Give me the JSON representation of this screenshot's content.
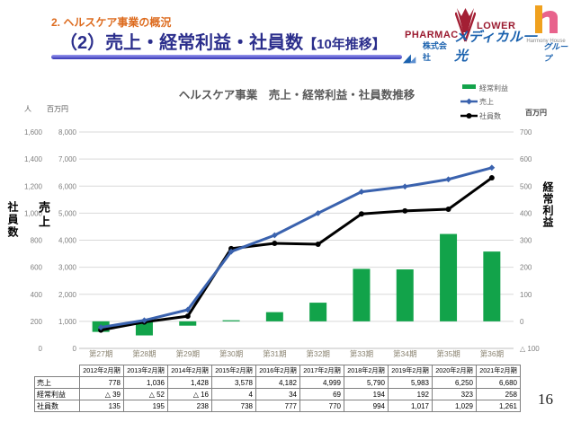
{
  "header": {
    "section": "2. ヘルスケア事業の概況",
    "title_main": "（2）売上・経常利益・社員数",
    "title_sub": "【10年推移】"
  },
  "logos": {
    "pharmacy": {
      "left": "PHARMAC",
      "right": "LOWER"
    },
    "harmony": {
      "caption": "Harmony House"
    },
    "medical": {
      "prefix": "株式会社",
      "name": "メディカル一光",
      "suffix": "グループ"
    }
  },
  "chart_data": {
    "type": "combo",
    "title": "ヘルスケア事業　売上・経常利益・社員数推移",
    "categories": [
      "第27期",
      "第28期",
      "第29期",
      "第30期",
      "第31期",
      "第32期",
      "第33期",
      "第34期",
      "第35期",
      "第36期"
    ],
    "series": [
      {
        "name": "経常利益",
        "type": "bar",
        "axis": "right",
        "color": "#12A34A",
        "values": [
          -39,
          -52,
          -16,
          4,
          34,
          69,
          194,
          192,
          323,
          258
        ]
      },
      {
        "name": "売上",
        "type": "line",
        "axis": "left_sales",
        "color": "#3A62AE",
        "values": [
          778,
          1036,
          1428,
          3578,
          4182,
          4999,
          5790,
          5983,
          6250,
          6680
        ]
      },
      {
        "name": "社員数",
        "type": "line",
        "axis": "left_employees",
        "color": "#000000",
        "values": [
          135,
          195,
          238,
          738,
          777,
          770,
          994,
          1017,
          1029,
          1261
        ]
      }
    ],
    "axes": {
      "left_employees": {
        "unit": "人",
        "title": "社員数",
        "min": 0,
        "max": 1600,
        "ticks": [
          "1,600",
          "1,400",
          "1,200",
          "1,000",
          "800",
          "600",
          "400",
          "200",
          "0"
        ]
      },
      "left_sales": {
        "unit": "百万円",
        "title": "売上",
        "min": 0,
        "max": 8000,
        "ticks": [
          "8,000",
          "7,000",
          "6,000",
          "5,000",
          "4,000",
          "3,000",
          "2,000",
          "1,000",
          "0"
        ]
      },
      "right": {
        "unit": "百万円",
        "title": "経常利益",
        "min": -100,
        "max": 700,
        "ticks": [
          "700",
          "600",
          "500",
          "400",
          "300",
          "200",
          "100",
          "0",
          "△ 100"
        ]
      }
    },
    "legend": [
      "経常利益",
      "売上",
      "社員数"
    ],
    "grid": true,
    "legend_position": "top-right"
  },
  "table": {
    "headers": [
      "2012年2月期",
      "2013年2月期",
      "2014年2月期",
      "2015年2月期",
      "2016年2月期",
      "2017年2月期",
      "2018年2月期",
      "2019年2月期",
      "2020年2月期",
      "2021年2月期"
    ],
    "rows": [
      {
        "label": "売上",
        "values": [
          "778",
          "1,036",
          "1,428",
          "3,578",
          "4,182",
          "4,999",
          "5,790",
          "5,983",
          "6,250",
          "6,680"
        ]
      },
      {
        "label": "経常利益",
        "values": [
          "△ 39",
          "△ 52",
          "△ 16",
          "4",
          "34",
          "69",
          "194",
          "192",
          "323",
          "258"
        ]
      },
      {
        "label": "社員数",
        "values": [
          "135",
          "195",
          "238",
          "738",
          "777",
          "770",
          "994",
          "1,017",
          "1,029",
          "1,261"
        ]
      }
    ]
  },
  "page_number": "16",
  "colors": {
    "accent_orange": "#DD6B1E",
    "accent_navy": "#2B2E8C",
    "bar_green": "#12A34A",
    "line_blue": "#3A62AE",
    "line_black": "#000000",
    "logo_red": "#9B1B30",
    "logo_blue": "#1A61AE",
    "harmony_orange": "#F0A11E",
    "harmony_pink": "#E8638C",
    "gridline": "#D9D9D9"
  }
}
